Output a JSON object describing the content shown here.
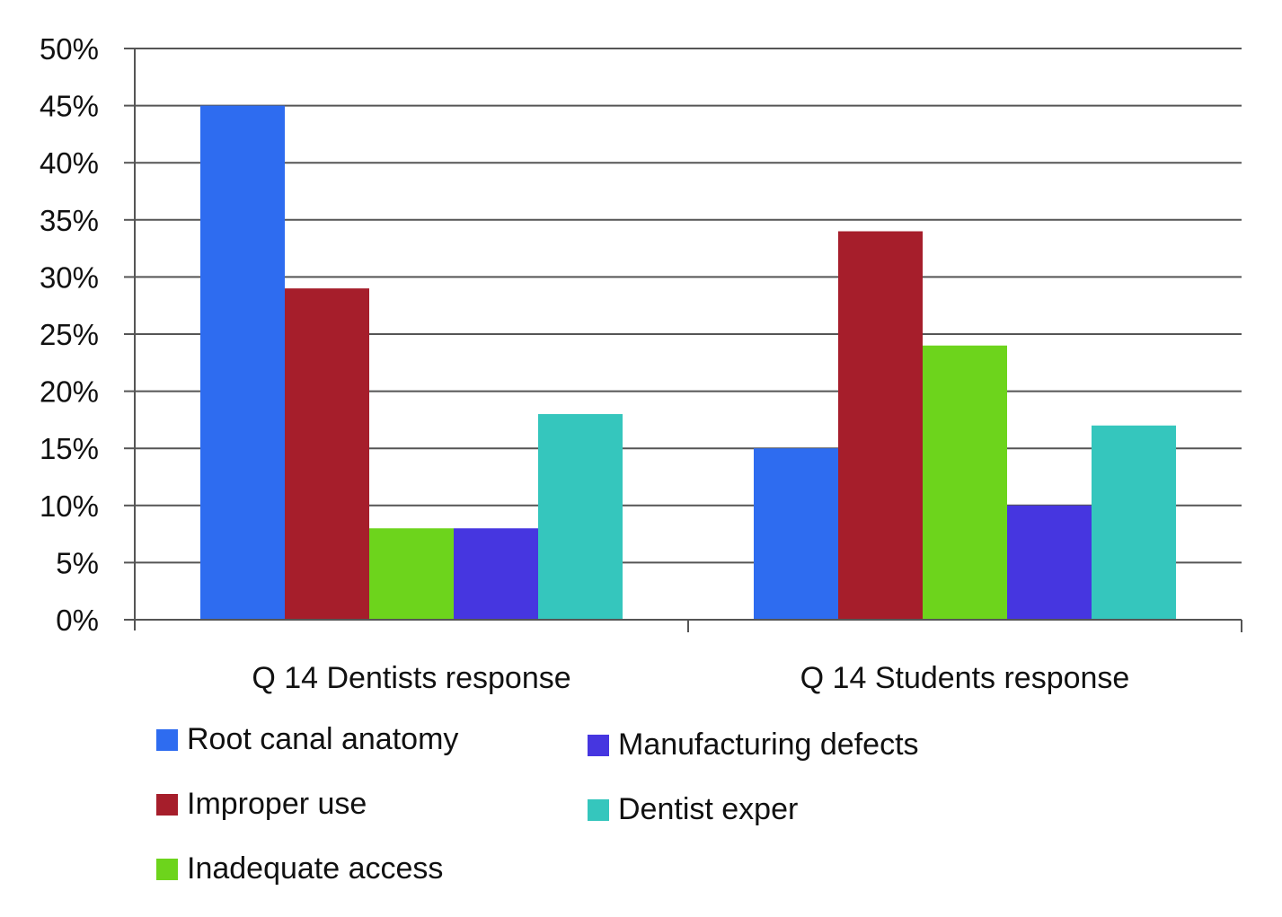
{
  "chart_data": {
    "type": "bar",
    "title": "",
    "xlabel": "",
    "ylabel": "",
    "categories": [
      "Q 14 Dentists response",
      "Q 14 Students response"
    ],
    "series": [
      {
        "name": "Root canal anatomy",
        "color": "#2e6cf0",
        "values": [
          45,
          15
        ]
      },
      {
        "name": "Improper use",
        "color": "#a61e2b",
        "values": [
          29,
          34
        ]
      },
      {
        "name": "Inadequate access",
        "color": "#6dd41c",
        "values": [
          8,
          24
        ]
      },
      {
        "name": "Manufacturing defects",
        "color": "#4636e0",
        "values": [
          8,
          10
        ]
      },
      {
        "name": "Dentist exper",
        "color": "#35c6bd",
        "values": [
          18,
          17
        ]
      }
    ],
    "ylim": [
      0,
      50
    ],
    "yticks": [
      0,
      5,
      10,
      15,
      20,
      25,
      30,
      35,
      40,
      45,
      50
    ],
    "ytick_labels": [
      "0%",
      "5%",
      "10%",
      "15%",
      "20%",
      "25%",
      "30%",
      "35%",
      "40%",
      "45%",
      "50%"
    ],
    "grid": true,
    "legend_position": "bottom"
  }
}
